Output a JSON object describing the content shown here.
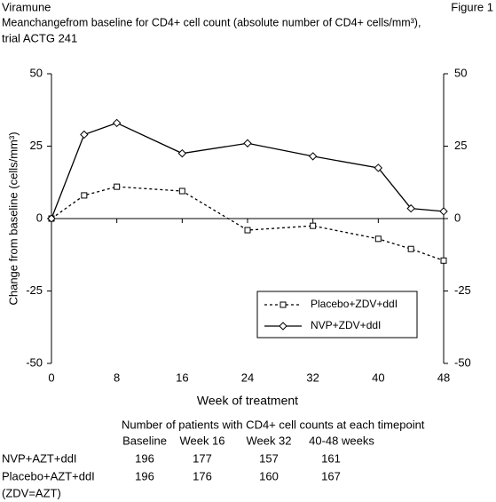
{
  "chart_data": {
    "type": "line",
    "header_left": "Viramune",
    "header_right": "Figure 1",
    "title": "Meanchangefrom baseline for CD4+ cell count (absolute number of CD4+ cells/mm³),",
    "subtitle": "trial ACTG 241",
    "xlabel": "Week of treatment",
    "ylabel": "Change from baseline (cells/mm³)",
    "x": [
      0,
      4,
      8,
      16,
      24,
      32,
      40,
      44,
      48
    ],
    "series": [
      {
        "name": "Placebo+ZDV+ddI",
        "color": "#000000",
        "dash": true,
        "marker": "square",
        "values": [
          0,
          8,
          11,
          9.5,
          -4,
          -2.5,
          -7,
          -10.5,
          -14.5
        ]
      },
      {
        "name": "NVP+ZDV+ddI",
        "color": "#000000",
        "dash": false,
        "marker": "diamond",
        "values": [
          0,
          29,
          33,
          22.5,
          26,
          21.5,
          17.5,
          3.5,
          2.5
        ]
      }
    ],
    "xlim": [
      0,
      48
    ],
    "xticks": [
      0,
      8,
      16,
      24,
      32,
      40,
      48
    ],
    "ylim": [
      -50,
      50
    ],
    "yticks": [
      -50,
      -25,
      0,
      25,
      50
    ],
    "y2lim": [
      -50,
      50
    ],
    "y2ticks": [
      -50,
      -25,
      0,
      25,
      50
    ],
    "grid": false,
    "legend": "lower right"
  },
  "table": {
    "title": "Number of patients with CD4+ cell counts at each timepoint",
    "columns": [
      "Baseline",
      "Week 16",
      "Week 32",
      "40-48 weeks"
    ],
    "rows": [
      {
        "label": "NVP+AZT+ddI",
        "cells": [
          196,
          177,
          157,
          161
        ]
      },
      {
        "label": "Placebo+AZT+ddI",
        "cells": [
          196,
          176,
          160,
          167
        ]
      }
    ],
    "note": "(ZDV=AZT)"
  }
}
